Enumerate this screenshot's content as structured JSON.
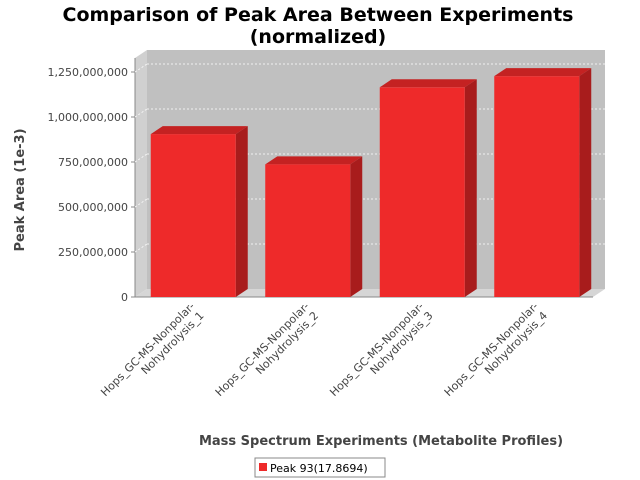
{
  "chart_data": {
    "type": "bar",
    "title_lines": [
      "Comparison of Peak Area Between Experiments",
      "(normalized)"
    ],
    "xlabel": "Mass Spectrum Experiments (Metabolite Profiles)",
    "ylabel": "Peak Area (1e-3)",
    "categories": [
      [
        "Hops_GC-MS-Nonpolar-",
        "Nohydrolysis_1"
      ],
      [
        "Hops_GC-MS-Nonpolar-",
        "Nohydrolysis_2"
      ],
      [
        "Hops_GC-MS-Nonpolar-",
        "Nohydrolysis_3"
      ],
      [
        "Hops_GC-MS-Nonpolar-",
        "Nohydrolysis_4"
      ]
    ],
    "series": [
      {
        "name": "Peak 93(17.8694)",
        "values": [
          905000000,
          737000000,
          1165000000,
          1227000000
        ]
      }
    ],
    "yticks": [
      0,
      250000000,
      500000000,
      750000000,
      1000000000,
      1250000000
    ],
    "ytick_labels": [
      "0",
      "250,000,000",
      "500,000,000",
      "750,000,000",
      "1,000,000,000",
      "1,250,000,000"
    ],
    "ylim": [
      0,
      1250000000
    ],
    "grid": true,
    "legend_position": "bottom",
    "colors": {
      "bar_front": "#ee2a2a",
      "bar_top": "#c42222",
      "bar_side": "#a81c1c",
      "plot_back": "#c0c0c0",
      "plot_floor": "#d6d6d6",
      "plot_left_wall": "#d0d0d0",
      "grid": "#ffffff"
    }
  }
}
